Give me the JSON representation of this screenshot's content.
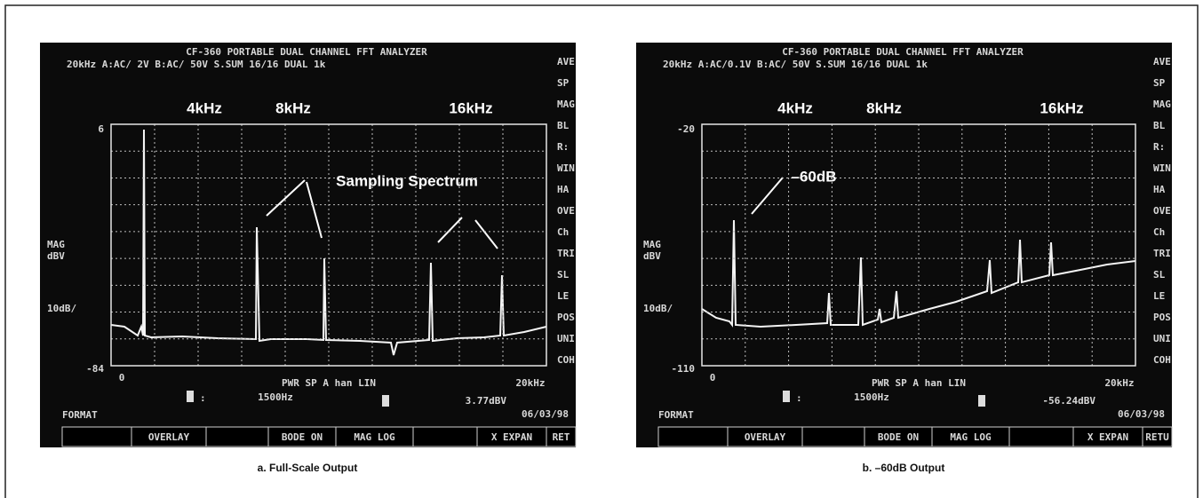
{
  "panels": [
    {
      "header": [
        "CF-360 PORTABLE DUAL CHANNEL FFT ANALYZER",
        "20kHz A:AC/  2V  B:AC/ 50V S.SUM    16/16    DUAL 1k"
      ],
      "freq_labels": [
        "4kHz",
        "8kHz",
        "16kHz"
      ],
      "annotation": "Sampling Spectrum",
      "y_top": "6",
      "y_bottom": "-84",
      "y_label": [
        "MAG",
        "dBV"
      ],
      "scale": "10dB/",
      "x_start": "0",
      "x_end": "20kHz",
      "mode": "PWR SP A   han   LIN",
      "cursor_freq": "1500Hz",
      "cursor_value": "3.77dBV",
      "format": "FORMAT",
      "date": "06/03/98",
      "softkeys": [
        "OVERLAY",
        "BODE ON",
        "MAG LOG",
        "X EXPAN",
        "RET"
      ],
      "side": [
        "AVE",
        "SP",
        "MAG",
        "BL",
        "R:",
        "WIN",
        "HA",
        "OVE",
        "Ch",
        "TRI",
        "SL",
        "LE",
        "POS",
        "UNI",
        "COH"
      ],
      "caption": "a. Full-Scale Output"
    },
    {
      "header": [
        "CF-360 PORTABLE DUAL CHANNEL FFT ANALYZER",
        "20kHz A:AC/0.1V  B:AC/ 50V S.SUM    16/16    DUAL 1k"
      ],
      "freq_labels": [
        "4kHz",
        "8kHz",
        "16kHz"
      ],
      "annotation": "–60dB",
      "y_top": "-20",
      "y_bottom": "-110",
      "y_label": [
        "MAG",
        "dBV"
      ],
      "scale": "10dB/",
      "x_start": "0",
      "x_end": "20kHz",
      "mode": "PWR SP A   han   LIN",
      "cursor_freq": "1500Hz",
      "cursor_value": "-56.24dBV",
      "format": "FORMAT",
      "date": "06/03/98",
      "softkeys": [
        "OVERLAY",
        "BODE ON",
        "MAG LOG",
        "X EXPAN",
        "RETU"
      ],
      "side": [
        "AVE",
        "SP",
        "MAG",
        "BL",
        "R:",
        "WIN",
        "HA",
        "OVE",
        "Ch",
        "TRI",
        "SL",
        "LE",
        "POS",
        "UNI",
        "COH"
      ],
      "caption": "b. –60dB Output"
    }
  ]
}
